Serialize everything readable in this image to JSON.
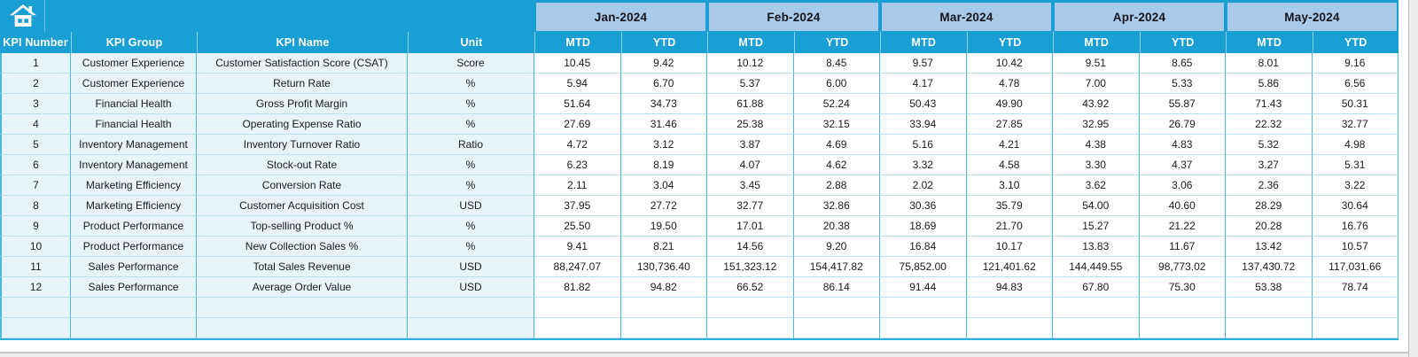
{
  "toolbar": {
    "home_icon": "home"
  },
  "colors": {
    "header_blue": "#199fd4",
    "month_band_blue": "#a9cbe9",
    "left_cell_bg": "#e8f3fa",
    "data_cell_bg": "#ffffff",
    "grid_vertical_border": "#49b9de",
    "grid_horizontal_border": "#b7e2ef"
  },
  "table": {
    "left_headers": [
      "KPI Number",
      "KPI Group",
      "KPI Name",
      "Unit"
    ],
    "months": [
      "Jan-2024",
      "Feb-2024",
      "Mar-2024",
      "Apr-2024",
      "May-2024"
    ],
    "sub_headers": [
      "MTD",
      "YTD"
    ],
    "rows": [
      {
        "number": "1",
        "group": "Customer Experience",
        "name": "Customer Satisfaction Score (CSAT)",
        "unit": "Score",
        "values": [
          "10.45",
          "9.42",
          "10.12",
          "8.45",
          "9.57",
          "10.42",
          "9.51",
          "8.65",
          "8.01",
          "9.16"
        ]
      },
      {
        "number": "2",
        "group": "Customer Experience",
        "name": "Return Rate",
        "unit": "%",
        "values": [
          "5.94",
          "6.70",
          "5.37",
          "6.00",
          "4.17",
          "4.78",
          "7.00",
          "5.33",
          "5.86",
          "6.56"
        ]
      },
      {
        "number": "3",
        "group": "Financial Health",
        "name": "Gross Profit Margin",
        "unit": "%",
        "values": [
          "51.64",
          "34.73",
          "61.88",
          "52.24",
          "50.43",
          "49.90",
          "43.92",
          "55.87",
          "71.43",
          "50.31"
        ]
      },
      {
        "number": "4",
        "group": "Financial Health",
        "name": "Operating Expense Ratio",
        "unit": "%",
        "values": [
          "27.69",
          "31.46",
          "25.38",
          "32.15",
          "33.94",
          "27.85",
          "32.95",
          "26.79",
          "22.32",
          "32.77"
        ]
      },
      {
        "number": "5",
        "group": "Inventory Management",
        "name": "Inventory Turnover Ratio",
        "unit": "Ratio",
        "values": [
          "4.72",
          "3.12",
          "3.87",
          "4.69",
          "5.16",
          "4.21",
          "4.38",
          "4.83",
          "5.32",
          "4.98"
        ]
      },
      {
        "number": "6",
        "group": "Inventory Management",
        "name": "Stock-out Rate",
        "unit": "%",
        "values": [
          "6.23",
          "8.19",
          "4.07",
          "4.62",
          "3.32",
          "4.58",
          "3.30",
          "4.37",
          "3.27",
          "5.31"
        ]
      },
      {
        "number": "7",
        "group": "Marketing Efficiency",
        "name": "Conversion Rate",
        "unit": "%",
        "values": [
          "2.11",
          "3.04",
          "3.45",
          "2.88",
          "2.02",
          "3.10",
          "3.62",
          "3.06",
          "2.36",
          "3.22"
        ]
      },
      {
        "number": "8",
        "group": "Marketing Efficiency",
        "name": "Customer Acquisition Cost",
        "unit": "USD",
        "values": [
          "37.95",
          "27.72",
          "32.77",
          "32.86",
          "30.36",
          "35.79",
          "54.00",
          "40.60",
          "28.29",
          "30.64"
        ]
      },
      {
        "number": "9",
        "group": "Product Performance",
        "name": "Top-selling Product %",
        "unit": "%",
        "values": [
          "25.50",
          "19.50",
          "17.01",
          "20.38",
          "18.69",
          "21.70",
          "15.27",
          "21.22",
          "20.28",
          "16.76"
        ]
      },
      {
        "number": "10",
        "group": "Product Performance",
        "name": "New Collection Sales %",
        "unit": "%",
        "values": [
          "9.41",
          "8.21",
          "14.56",
          "9.20",
          "16.84",
          "10.17",
          "13.83",
          "11.67",
          "13.42",
          "10.57"
        ]
      },
      {
        "number": "11",
        "group": "Sales Performance",
        "name": "Total Sales Revenue",
        "unit": "USD",
        "values": [
          "88,247.07",
          "130,736.40",
          "151,323.12",
          "154,417.82",
          "75,852.00",
          "121,401.62",
          "144,449.55",
          "98,773.02",
          "137,430.72",
          "117,031.66"
        ]
      },
      {
        "number": "12",
        "group": "Sales Performance",
        "name": "Average Order Value",
        "unit": "USD",
        "values": [
          "81.82",
          "94.82",
          "66.52",
          "86.14",
          "91.44",
          "94.83",
          "67.80",
          "75.30",
          "53.38",
          "78.74"
        ]
      }
    ],
    "empty_row_count": 2
  }
}
